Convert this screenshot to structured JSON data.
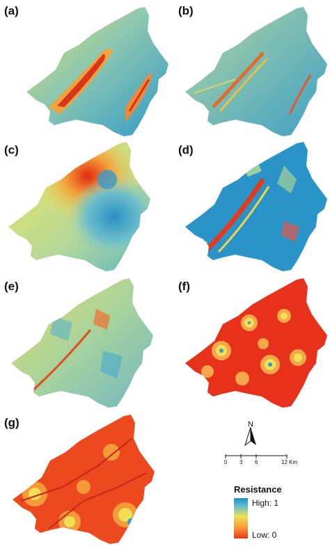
{
  "panels": [
    {
      "label": "(a)"
    },
    {
      "label": "(b)"
    },
    {
      "label": "(c)"
    },
    {
      "label": "(d)"
    },
    {
      "label": "(e)"
    },
    {
      "label": "(f)"
    },
    {
      "label": "(g)"
    }
  ],
  "north_arrow": {
    "letter": "N"
  },
  "scale_bar": {
    "ticks": [
      "0",
      "3",
      "6",
      "12 Km"
    ]
  },
  "legend": {
    "title": "Resistance",
    "high_label": "High: 1",
    "low_label": "Low: 0",
    "colors": {
      "high": "#1f8fc6",
      "mid": "#e8e45a",
      "low": "#e8381a"
    }
  }
}
